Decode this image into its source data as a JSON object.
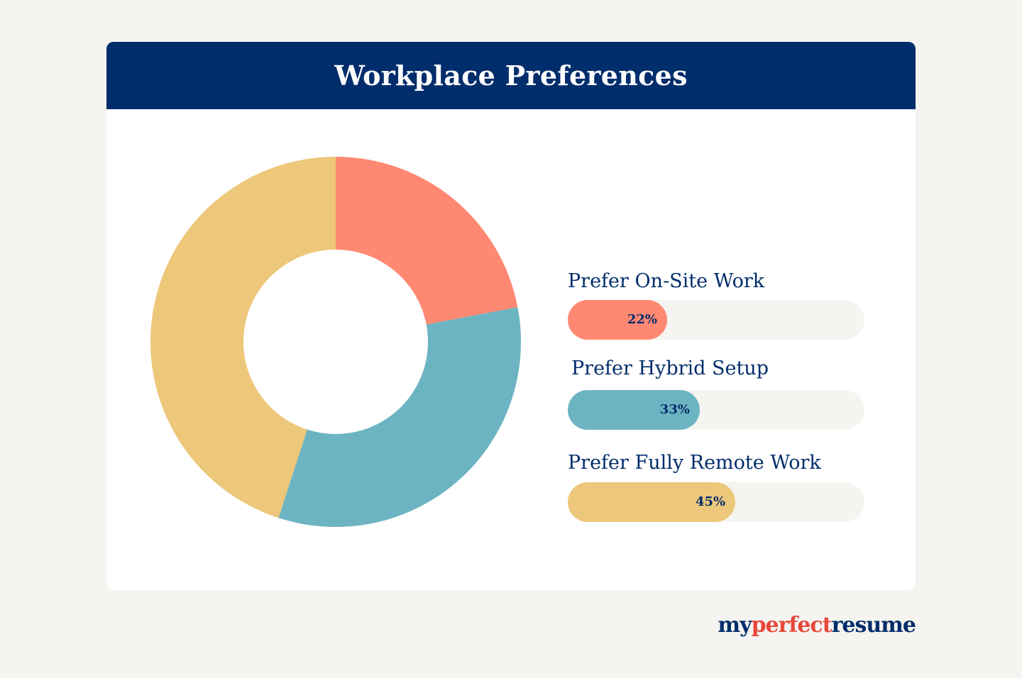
{
  "header": {
    "title": "Workplace Preferences"
  },
  "chart_data": {
    "type": "pie",
    "categories": [
      "Prefer On-Site Work",
      "Prefer Hybrid Setup",
      "Prefer Fully Remote Work"
    ],
    "values": [
      22,
      33,
      45
    ],
    "value_labels": [
      "22%",
      "33%",
      "45%"
    ],
    "colors": [
      "#ff8872",
      "#6db4c2",
      "#edc77a"
    ],
    "donut": true
  },
  "logo": {
    "part1": "my",
    "part2": "perfect",
    "part3": "resume",
    "colors": [
      "#002d6b",
      "#e8473a",
      "#002d6b"
    ]
  }
}
